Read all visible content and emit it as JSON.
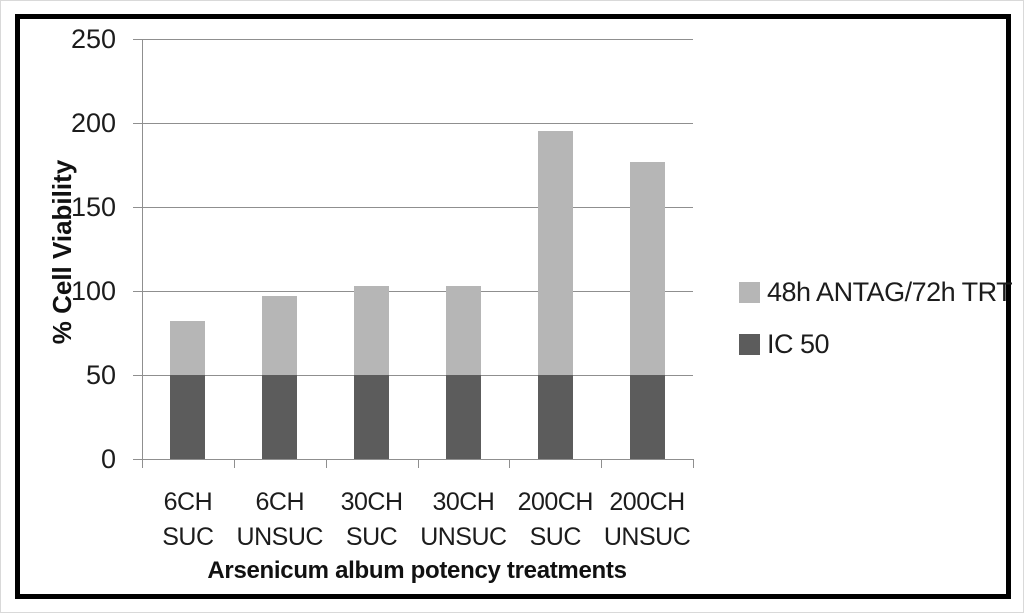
{
  "figure": {
    "background_color": "#ffffff",
    "frame_border_color": "#000000"
  },
  "chart_data": {
    "type": "bar",
    "stacked": true,
    "title": "",
    "xlabel": "Arsenicum album potency treatments",
    "ylabel": "% Cell Viability",
    "categories": [
      "6CH SUC",
      "6CH UNSUC",
      "30CH SUC",
      "30CH UNSUC",
      "200CH SUC",
      "200CH UNSUC"
    ],
    "series": [
      {
        "name": "IC 50",
        "color": "#5c5c5c",
        "values": [
          50,
          50,
          50,
          50,
          50,
          50
        ]
      },
      {
        "name": "48h ANTAG/72h TRT",
        "color": "#b6b6b6",
        "values": [
          32,
          47,
          53,
          53,
          145,
          127
        ]
      }
    ],
    "stacked_totals": [
      82,
      97,
      103,
      103,
      195,
      177
    ],
    "ylim": [
      0,
      250
    ],
    "yticks": [
      0,
      50,
      100,
      150,
      200,
      250
    ],
    "grid": true,
    "gridline_color": "#8f8f8f",
    "axis_color": "#8f8f8f",
    "text_color": "#1c1c1c",
    "legend_position": "right",
    "legend_order": [
      "48h ANTAG/72h TRT",
      "IC 50"
    ]
  }
}
